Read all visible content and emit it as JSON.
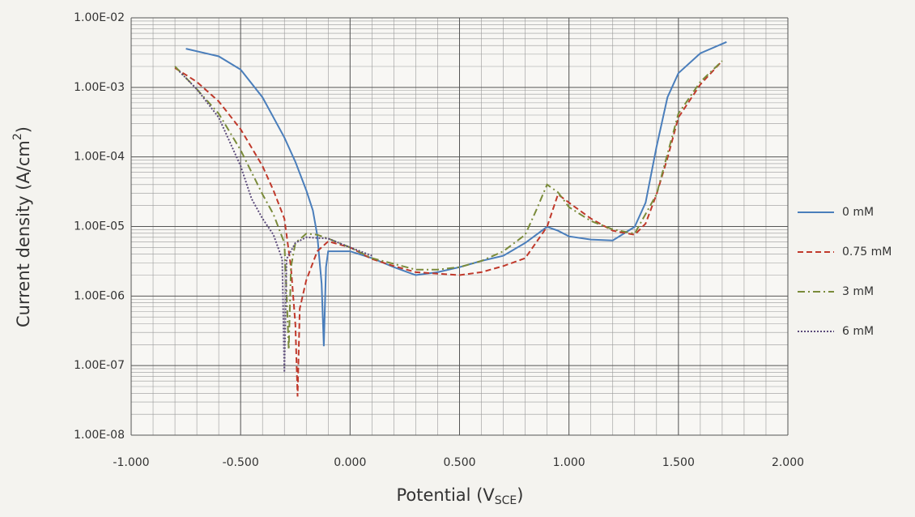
{
  "chart_data": {
    "type": "line",
    "log_y": true,
    "grid": true,
    "minor_grid": true,
    "legend": "right",
    "ylabel": {
      "text": "Current density (A/cm",
      "sup": "2",
      "after": ")"
    },
    "xlabel": {
      "text": "Potential (V",
      "sub": "SCE",
      "after": ")"
    },
    "xlim": [
      -1,
      2
    ],
    "xticks": [
      {
        "value": -1,
        "label": "-1.000"
      },
      {
        "value": -0.5,
        "label": "-0.500"
      },
      {
        "value": 0,
        "label": "0.000"
      },
      {
        "value": 0.5,
        "label": "0.500"
      },
      {
        "value": 1,
        "label": "1.000"
      },
      {
        "value": 1.5,
        "label": "1.500"
      },
      {
        "value": 2,
        "label": "2.000"
      }
    ],
    "ylim": [
      1e-08,
      0.01
    ],
    "yticks": [
      {
        "value": 1e-08,
        "label": "1.00E-08"
      },
      {
        "value": 1e-07,
        "label": "1.00E-07"
      },
      {
        "value": 1e-06,
        "label": "1.00E-06"
      },
      {
        "value": 1e-05,
        "label": "1.00E-05"
      },
      {
        "value": 0.0001,
        "label": "1.00E-04"
      },
      {
        "value": 0.001,
        "label": "1.00E-03"
      },
      {
        "value": 0.01,
        "label": "1.00E-02"
      }
    ],
    "series": [
      {
        "name": "0 mM",
        "color": "#4a7ebb",
        "style": "solid",
        "x": [
          -0.75,
          -0.6,
          -0.5,
          -0.4,
          -0.3,
          -0.25,
          -0.2,
          -0.17,
          -0.15,
          -0.13,
          -0.12,
          -0.11,
          -0.1,
          0,
          0.1,
          0.2,
          0.3,
          0.4,
          0.5,
          0.6,
          0.7,
          0.8,
          0.9,
          0.95,
          1.0,
          1.1,
          1.2,
          1.3,
          1.35,
          1.4,
          1.45,
          1.5,
          1.6,
          1.72
        ],
        "values": [
          0.0036,
          0.0028,
          0.0018,
          0.00072,
          0.00019,
          8.5e-05,
          3.3e-05,
          1.7e-05,
          7.5e-06,
          1.5e-06,
          1.9e-07,
          2.6e-06,
          4.4e-06,
          4.4e-06,
          3.5e-06,
          2.6e-06,
          2e-06,
          2.2e-06,
          2.6e-06,
          3.2e-06,
          3.8e-06,
          5.8e-06,
          9.9e-06,
          8.7e-06,
          7.2e-06,
          6.5e-06,
          6.3e-06,
          9.9e-06,
          2.2e-05,
          0.00014,
          0.00072,
          0.0016,
          0.0031,
          0.0045
        ]
      },
      {
        "name": "0.75 mM",
        "color": "#c0392b",
        "style": "dashed",
        "x": [
          -0.8,
          -0.7,
          -0.6,
          -0.5,
          -0.4,
          -0.35,
          -0.3,
          -0.27,
          -0.25,
          -0.24,
          -0.23,
          -0.2,
          -0.15,
          -0.1,
          0,
          0.1,
          0.2,
          0.3,
          0.4,
          0.5,
          0.6,
          0.7,
          0.8,
          0.9,
          0.95,
          1.0,
          1.1,
          1.2,
          1.3,
          1.35,
          1.4,
          1.45,
          1.5,
          1.6,
          1.7
        ],
        "values": [
          0.0019,
          0.0012,
          0.00063,
          0.00025,
          7.4e-05,
          3.3e-05,
          1.3e-05,
          2.6e-06,
          3.9e-07,
          3.6e-08,
          6.6e-07,
          1.7e-06,
          4.4e-06,
          6.1e-06,
          5e-06,
          3.4e-06,
          2.7e-06,
          2.2e-06,
          2.1e-06,
          2e-06,
          2.2e-06,
          2.7e-06,
          3.5e-06,
          9.9e-06,
          2.9e-05,
          2.2e-05,
          1.3e-05,
          8.7e-06,
          7.6e-06,
          1.1e-05,
          2.9e-05,
          9.6e-05,
          0.00037,
          0.0011,
          0.0024
        ]
      },
      {
        "name": "3 mM",
        "color": "#7a8b3a",
        "style": "dashdot",
        "x": [
          -0.8,
          -0.7,
          -0.6,
          -0.5,
          -0.4,
          -0.35,
          -0.3,
          -0.29,
          -0.28,
          -0.27,
          -0.25,
          -0.2,
          -0.15,
          -0.1,
          0,
          0.1,
          0.2,
          0.3,
          0.4,
          0.5,
          0.6,
          0.7,
          0.8,
          0.85,
          0.9,
          0.95,
          1.0,
          1.1,
          1.2,
          1.3,
          1.4,
          1.5,
          1.6,
          1.7
        ],
        "values": [
          0.002,
          0.00094,
          0.00042,
          0.000125,
          2.9e-05,
          1.5e-05,
          5.8e-06,
          1.1e-06,
          1.7e-07,
          2.6e-06,
          5.8e-06,
          7.9e-06,
          7.6e-06,
          6.7e-06,
          5e-06,
          3.5e-06,
          2.9e-06,
          2.4e-06,
          2.4e-06,
          2.6e-06,
          3.2e-06,
          4.4e-06,
          7.6e-06,
          1.7e-05,
          4e-05,
          3.1e-05,
          1.9e-05,
          1.2e-05,
          9.1e-06,
          7.9e-06,
          2.9e-05,
          0.00042,
          0.0012,
          0.0024
        ]
      },
      {
        "name": "6 mM",
        "color": "#5b4a7a",
        "style": "dotted",
        "x": [
          -0.78,
          -0.7,
          -0.6,
          -0.5,
          -0.45,
          -0.4,
          -0.35,
          -0.31,
          -0.3,
          -0.29,
          -0.25,
          -0.2,
          -0.1,
          0,
          0.1
        ],
        "values": [
          0.0017,
          0.00094,
          0.00037,
          7.4e-05,
          2.5e-05,
          1.3e-05,
          7.6e-06,
          3.4e-06,
          8e-08,
          3.4e-06,
          5.8e-06,
          7e-06,
          6.7e-06,
          5e-06,
          3.8e-06
        ]
      }
    ]
  }
}
